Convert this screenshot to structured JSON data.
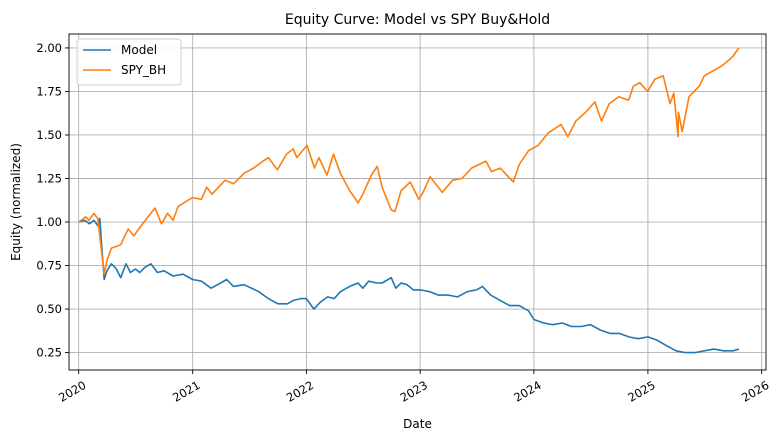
{
  "chart_data": {
    "type": "line",
    "title": "Equity Curve: Model vs SPY Buy&Hold",
    "xlabel": "Date",
    "ylabel": "Equity (normalized)",
    "x_type": "date",
    "xlim": [
      "2019-12-01",
      "2026-01-15"
    ],
    "ylim": [
      0.15,
      2.08
    ],
    "x_ticks": [
      "2020",
      "2021",
      "2022",
      "2023",
      "2024",
      "2025",
      "2026"
    ],
    "y_ticks": [
      "0.25",
      "0.50",
      "0.75",
      "1.00",
      "1.25",
      "1.50",
      "1.75",
      "2.00"
    ],
    "grid": true,
    "legend": {
      "position": "top-left"
    },
    "series": [
      {
        "name": "Model",
        "color": "#1f77b4",
        "points": [
          [
            "2020-01-02",
            1.0
          ],
          [
            "2020-01-20",
            1.01
          ],
          [
            "2020-02-05",
            0.99
          ],
          [
            "2020-02-19",
            1.01
          ],
          [
            "2020-03-02",
            0.98
          ],
          [
            "2020-03-09",
            1.02
          ],
          [
            "2020-03-16",
            0.84
          ],
          [
            "2020-03-23",
            0.67
          ],
          [
            "2020-04-01",
            0.72
          ],
          [
            "2020-04-15",
            0.76
          ],
          [
            "2020-05-01",
            0.73
          ],
          [
            "2020-05-15",
            0.68
          ],
          [
            "2020-06-01",
            0.76
          ],
          [
            "2020-06-15",
            0.71
          ],
          [
            "2020-07-01",
            0.73
          ],
          [
            "2020-07-15",
            0.71
          ],
          [
            "2020-08-01",
            0.74
          ],
          [
            "2020-08-20",
            0.76
          ],
          [
            "2020-09-10",
            0.71
          ],
          [
            "2020-10-01",
            0.72
          ],
          [
            "2020-10-30",
            0.69
          ],
          [
            "2020-12-01",
            0.7
          ],
          [
            "2021-01-01",
            0.67
          ],
          [
            "2021-01-29",
            0.66
          ],
          [
            "2021-03-01",
            0.62
          ],
          [
            "2021-04-01",
            0.65
          ],
          [
            "2021-04-20",
            0.67
          ],
          [
            "2021-05-12",
            0.63
          ],
          [
            "2021-06-15",
            0.64
          ],
          [
            "2021-08-01",
            0.6
          ],
          [
            "2021-09-01",
            0.56
          ],
          [
            "2021-10-01",
            0.53
          ],
          [
            "2021-11-01",
            0.53
          ],
          [
            "2021-11-20",
            0.55
          ],
          [
            "2021-12-15",
            0.56
          ],
          [
            "2022-01-01",
            0.56
          ],
          [
            "2022-01-25",
            0.5
          ],
          [
            "2022-02-15",
            0.54
          ],
          [
            "2022-03-10",
            0.57
          ],
          [
            "2022-03-31",
            0.56
          ],
          [
            "2022-04-20",
            0.6
          ],
          [
            "2022-05-20",
            0.63
          ],
          [
            "2022-06-16",
            0.65
          ],
          [
            "2022-07-01",
            0.62
          ],
          [
            "2022-07-20",
            0.66
          ],
          [
            "2022-08-15",
            0.65
          ],
          [
            "2022-09-01",
            0.65
          ],
          [
            "2022-09-30",
            0.68
          ],
          [
            "2022-10-15",
            0.62
          ],
          [
            "2022-11-01",
            0.65
          ],
          [
            "2022-11-20",
            0.64
          ],
          [
            "2022-12-10",
            0.61
          ],
          [
            "2023-01-01",
            0.61
          ],
          [
            "2023-02-01",
            0.6
          ],
          [
            "2023-03-01",
            0.58
          ],
          [
            "2023-04-01",
            0.58
          ],
          [
            "2023-05-01",
            0.57
          ],
          [
            "2023-06-01",
            0.6
          ],
          [
            "2023-07-01",
            0.61
          ],
          [
            "2023-07-20",
            0.63
          ],
          [
            "2023-08-15",
            0.58
          ],
          [
            "2023-09-15",
            0.55
          ],
          [
            "2023-10-15",
            0.52
          ],
          [
            "2023-11-15",
            0.52
          ],
          [
            "2023-12-15",
            0.49
          ],
          [
            "2024-01-01",
            0.44
          ],
          [
            "2024-02-01",
            0.42
          ],
          [
            "2024-03-01",
            0.41
          ],
          [
            "2024-04-01",
            0.42
          ],
          [
            "2024-05-01",
            0.4
          ],
          [
            "2024-06-01",
            0.4
          ],
          [
            "2024-07-01",
            0.41
          ],
          [
            "2024-08-01",
            0.38
          ],
          [
            "2024-09-01",
            0.36
          ],
          [
            "2024-10-01",
            0.36
          ],
          [
            "2024-11-01",
            0.34
          ],
          [
            "2024-12-01",
            0.33
          ],
          [
            "2025-01-01",
            0.34
          ],
          [
            "2025-02-01",
            0.32
          ],
          [
            "2025-03-01",
            0.29
          ],
          [
            "2025-04-01",
            0.26
          ],
          [
            "2025-05-01",
            0.25
          ],
          [
            "2025-06-01",
            0.25
          ],
          [
            "2025-07-01",
            0.26
          ],
          [
            "2025-08-01",
            0.27
          ],
          [
            "2025-09-01",
            0.26
          ],
          [
            "2025-10-01",
            0.26
          ],
          [
            "2025-10-20",
            0.27
          ]
        ]
      },
      {
        "name": "SPY_BH",
        "color": "#ff7f0e",
        "points": [
          [
            "2020-01-02",
            1.0
          ],
          [
            "2020-01-24",
            1.03
          ],
          [
            "2020-02-03",
            1.01
          ],
          [
            "2020-02-19",
            1.05
          ],
          [
            "2020-03-02",
            1.02
          ],
          [
            "2020-03-09",
            0.92
          ],
          [
            "2020-03-23",
            0.7
          ],
          [
            "2020-04-01",
            0.78
          ],
          [
            "2020-04-15",
            0.85
          ],
          [
            "2020-05-01",
            0.86
          ],
          [
            "2020-05-15",
            0.87
          ],
          [
            "2020-06-08",
            0.96
          ],
          [
            "2020-06-26",
            0.92
          ],
          [
            "2020-07-20",
            0.98
          ],
          [
            "2020-08-15",
            1.04
          ],
          [
            "2020-09-02",
            1.08
          ],
          [
            "2020-09-23",
            0.99
          ],
          [
            "2020-10-12",
            1.05
          ],
          [
            "2020-10-30",
            1.01
          ],
          [
            "2020-11-15",
            1.09
          ],
          [
            "2020-12-31",
            1.14
          ],
          [
            "2021-01-29",
            1.13
          ],
          [
            "2021-02-15",
            1.2
          ],
          [
            "2021-03-04",
            1.16
          ],
          [
            "2021-04-15",
            1.24
          ],
          [
            "2021-05-12",
            1.22
          ],
          [
            "2021-06-15",
            1.28
          ],
          [
            "2021-07-15",
            1.31
          ],
          [
            "2021-08-15",
            1.35
          ],
          [
            "2021-09-01",
            1.37
          ],
          [
            "2021-09-30",
            1.3
          ],
          [
            "2021-10-29",
            1.39
          ],
          [
            "2021-11-20",
            1.42
          ],
          [
            "2021-12-01",
            1.37
          ],
          [
            "2022-01-03",
            1.44
          ],
          [
            "2022-01-27",
            1.31
          ],
          [
            "2022-02-10",
            1.37
          ],
          [
            "2022-03-08",
            1.27
          ],
          [
            "2022-03-29",
            1.39
          ],
          [
            "2022-04-20",
            1.28
          ],
          [
            "2022-05-20",
            1.18
          ],
          [
            "2022-06-16",
            1.11
          ],
          [
            "2022-07-01",
            1.16
          ],
          [
            "2022-07-29",
            1.27
          ],
          [
            "2022-08-16",
            1.32
          ],
          [
            "2022-09-01",
            1.2
          ],
          [
            "2022-09-30",
            1.07
          ],
          [
            "2022-10-12",
            1.06
          ],
          [
            "2022-11-01",
            1.18
          ],
          [
            "2022-11-30",
            1.23
          ],
          [
            "2022-12-28",
            1.13
          ],
          [
            "2023-01-10",
            1.17
          ],
          [
            "2023-02-02",
            1.26
          ],
          [
            "2023-03-13",
            1.17
          ],
          [
            "2023-04-15",
            1.24
          ],
          [
            "2023-05-15",
            1.25
          ],
          [
            "2023-06-15",
            1.31
          ],
          [
            "2023-07-31",
            1.35
          ],
          [
            "2023-08-18",
            1.29
          ],
          [
            "2023-09-15",
            1.31
          ],
          [
            "2023-10-27",
            1.23
          ],
          [
            "2023-11-15",
            1.33
          ],
          [
            "2023-12-15",
            1.41
          ],
          [
            "2024-01-15",
            1.44
          ],
          [
            "2024-02-15",
            1.51
          ],
          [
            "2024-03-28",
            1.56
          ],
          [
            "2024-04-19",
            1.49
          ],
          [
            "2024-05-15",
            1.58
          ],
          [
            "2024-06-15",
            1.63
          ],
          [
            "2024-07-15",
            1.69
          ],
          [
            "2024-08-05",
            1.58
          ],
          [
            "2024-08-30",
            1.68
          ],
          [
            "2024-09-30",
            1.72
          ],
          [
            "2024-10-31",
            1.7
          ],
          [
            "2024-11-15",
            1.78
          ],
          [
            "2024-12-06",
            1.8
          ],
          [
            "2024-12-31",
            1.75
          ],
          [
            "2025-01-23",
            1.82
          ],
          [
            "2025-02-19",
            1.84
          ],
          [
            "2025-03-13",
            1.68
          ],
          [
            "2025-03-25",
            1.74
          ],
          [
            "2025-04-08",
            1.49
          ],
          [
            "2025-04-09",
            1.63
          ],
          [
            "2025-04-21",
            1.52
          ],
          [
            "2025-05-13",
            1.72
          ],
          [
            "2025-06-15",
            1.78
          ],
          [
            "2025-07-01",
            1.84
          ],
          [
            "2025-07-31",
            1.87
          ],
          [
            "2025-08-29",
            1.9
          ],
          [
            "2025-09-30",
            1.95
          ],
          [
            "2025-10-20",
            2.0
          ]
        ]
      }
    ]
  }
}
